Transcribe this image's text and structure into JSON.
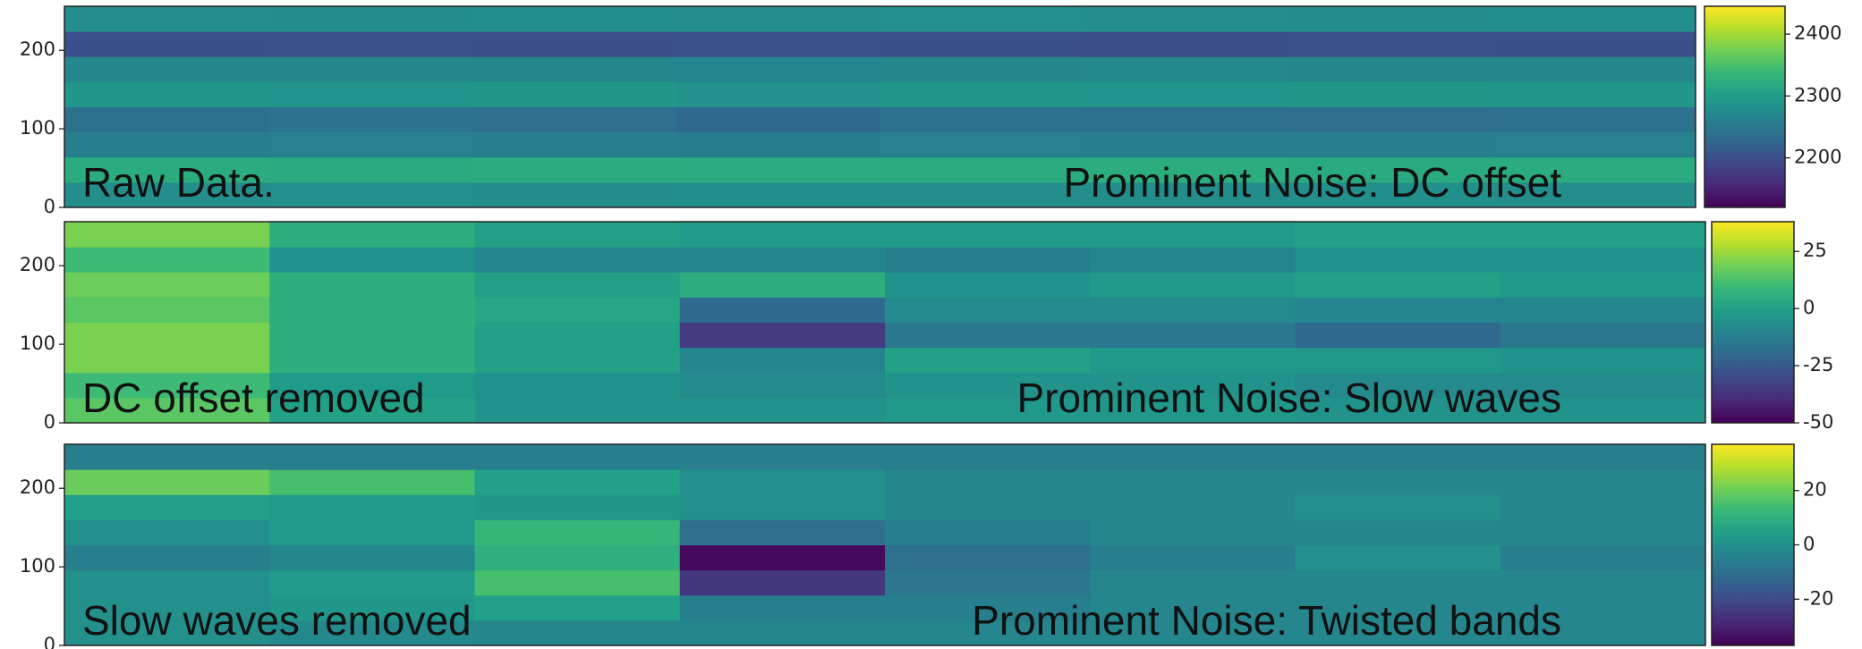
{
  "chart_data": [
    {
      "type": "heatmap",
      "colormap": "viridis",
      "annotations": [
        "Raw Data.",
        "Prominent Noise: DC offset"
      ],
      "ylim": [
        0,
        256
      ],
      "yticks": [
        0,
        100,
        200
      ],
      "zlim": [
        2120,
        2445
      ],
      "zticks": [
        2200,
        2300,
        2400
      ],
      "z": [
        [
          2280,
          2282,
          2279,
          2281,
          2280,
          2278,
          2281,
          2280
        ],
        [
          2320,
          2318,
          2321,
          2319,
          2320,
          2322,
          2318,
          2320
        ],
        [
          2260,
          2262,
          2259,
          2255,
          2261,
          2260,
          2258,
          2261
        ],
        [
          2240,
          2242,
          2239,
          2230,
          2241,
          2240,
          2238,
          2241
        ],
        [
          2290,
          2288,
          2291,
          2285,
          2290,
          2289,
          2291,
          2290
        ],
        [
          2270,
          2271,
          2269,
          2268,
          2270,
          2272,
          2269,
          2270
        ],
        [
          2200,
          2202,
          2199,
          2201,
          2200,
          2198,
          2201,
          2200
        ],
        [
          2280,
          2279,
          2281,
          2280,
          2282,
          2280,
          2279,
          2281
        ]
      ]
    },
    {
      "type": "heatmap",
      "colormap": "viridis",
      "annotations": [
        "DC offset removed",
        "Prominent Noise: Slow waves"
      ],
      "ylim": [
        0,
        256
      ],
      "yticks": [
        0,
        100,
        200
      ],
      "zlim": [
        -50,
        38
      ],
      "zticks": [
        -50,
        -25,
        0,
        25
      ],
      "z": [
        [
          15,
          0,
          -5,
          -5,
          -3,
          -3,
          -5,
          -5
        ],
        [
          10,
          -2,
          -5,
          -8,
          -5,
          -5,
          -8,
          -8
        ],
        [
          20,
          5,
          0,
          -10,
          0,
          -3,
          -3,
          -5
        ],
        [
          20,
          5,
          0,
          -35,
          -15,
          -15,
          -20,
          -15
        ],
        [
          15,
          5,
          2,
          -20,
          -8,
          -8,
          -10,
          -10
        ],
        [
          18,
          5,
          0,
          5,
          -5,
          -3,
          0,
          -3
        ],
        [
          10,
          -5,
          -10,
          -10,
          -12,
          -10,
          -5,
          -5
        ],
        [
          20,
          5,
          0,
          -2,
          -2,
          -2,
          0,
          0
        ]
      ]
    },
    {
      "type": "heatmap",
      "colormap": "viridis",
      "annotations": [
        "Slow waves removed",
        "Prominent Noise: Twisted bands"
      ],
      "ylim": [
        0,
        256
      ],
      "yticks": [
        0,
        100,
        200
      ],
      "zlim": [
        -37,
        37
      ],
      "zticks": [
        -20,
        0,
        20
      ],
      "z": [
        [
          0,
          -2,
          -3,
          -3,
          -3,
          -3,
          -3,
          -3
        ],
        [
          0,
          2,
          5,
          -5,
          -5,
          -3,
          -3,
          -3
        ],
        [
          0,
          3,
          15,
          -25,
          -8,
          -3,
          -3,
          -3
        ],
        [
          -5,
          -3,
          10,
          -35,
          -10,
          -5,
          0,
          -5
        ],
        [
          0,
          3,
          12,
          -10,
          -5,
          -3,
          -3,
          -3
        ],
        [
          5,
          3,
          2,
          0,
          -3,
          -3,
          0,
          -3
        ],
        [
          20,
          15,
          5,
          0,
          -3,
          -3,
          -3,
          -3
        ],
        [
          -5,
          -5,
          -5,
          -5,
          -5,
          -5,
          -5,
          -5
        ]
      ]
    }
  ]
}
